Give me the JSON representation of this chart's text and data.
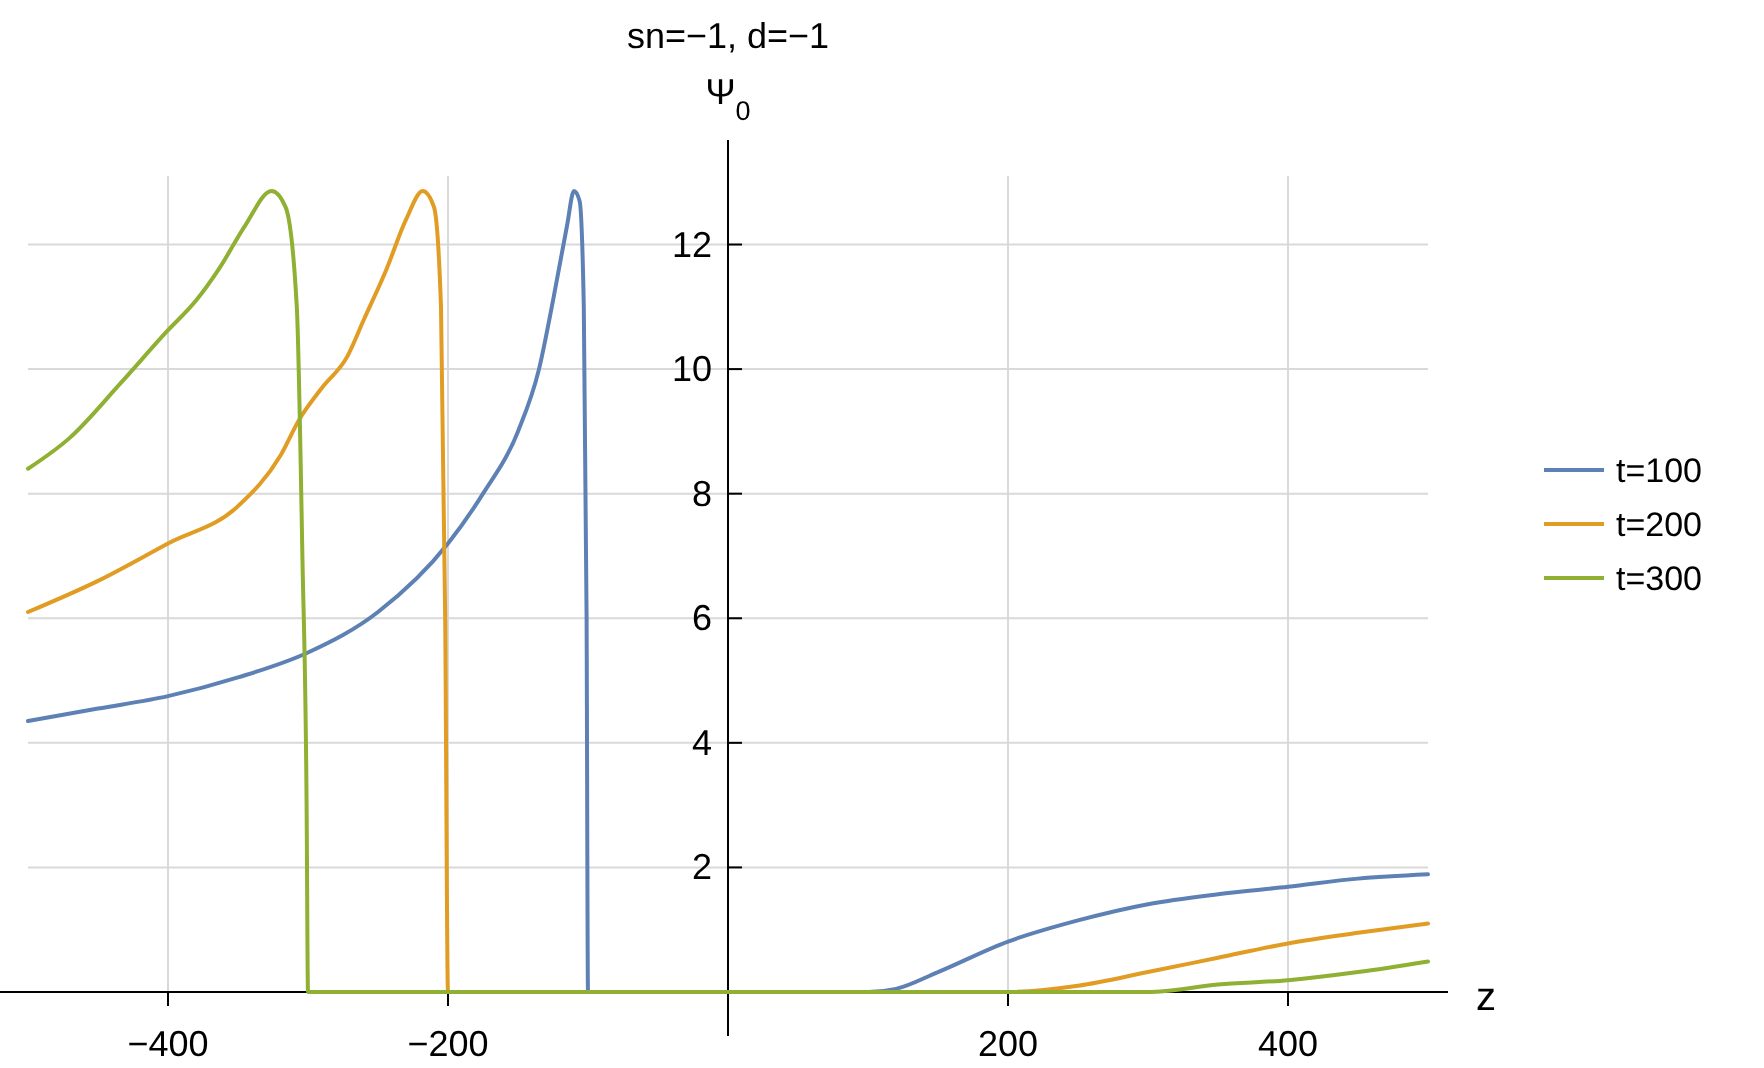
{
  "chart_data": {
    "type": "line",
    "title": "sn=−1, d=−1",
    "ylabel": "Ψ$_{0}$",
    "xlabel": "z",
    "xlim": [
      -500,
      500
    ],
    "ylim": [
      0,
      13.1
    ],
    "xticks": [
      -400,
      -200,
      200,
      400
    ],
    "yticks": [
      2,
      4,
      6,
      8,
      10,
      12
    ],
    "grid": true,
    "legend": "right",
    "series": [
      {
        "name": "t=100",
        "color": "#5e81b5",
        "x": [
          -500,
          -450,
          -400,
          -350,
          -300,
          -250,
          -200,
          -175,
          -150,
          -135,
          -125,
          -115,
          -110,
          -106,
          -103,
          -101,
          -100,
          0,
          100,
          120,
          150,
          200,
          250,
          300,
          350,
          400,
          450,
          500
        ],
        "values": [
          4.35,
          4.55,
          4.75,
          5.05,
          5.45,
          6.1,
          7.2,
          8.0,
          9.0,
          10.0,
          11.1,
          12.3,
          12.86,
          12.7,
          11,
          6,
          0,
          0,
          0,
          0.05,
          0.32,
          0.81,
          1.15,
          1.41,
          1.57,
          1.69,
          1.82,
          1.89
        ]
      },
      {
        "name": "t=200",
        "color": "#e19c24",
        "x": [
          -500,
          -450,
          -400,
          -350,
          -320,
          -306,
          -290,
          -272,
          -260,
          -244,
          -230,
          -218,
          -210,
          -205,
          -202,
          -200,
          0,
          200,
          250,
          300,
          350,
          400,
          450,
          500
        ],
        "values": [
          6.1,
          6.6,
          7.2,
          7.8,
          8.6,
          9.2,
          9.7,
          10.2,
          10.8,
          11.6,
          12.4,
          12.86,
          12.6,
          11,
          6,
          0,
          0,
          0,
          0.1,
          0.32,
          0.55,
          0.78,
          0.95,
          1.1
        ]
      },
      {
        "name": "t=300",
        "color": "#8fb032",
        "x": [
          -500,
          -470,
          -434,
          -401,
          -380,
          -363,
          -345,
          -326,
          -316,
          -308,
          -304,
          -301,
          -300,
          0,
          300,
          350,
          400,
          450,
          500
        ],
        "values": [
          8.4,
          8.9,
          9.77,
          10.6,
          11.1,
          11.63,
          12.3,
          12.86,
          12.6,
          11,
          7,
          3,
          0,
          0,
          0,
          0.12,
          0.19,
          0.32,
          0.49
        ]
      }
    ]
  }
}
